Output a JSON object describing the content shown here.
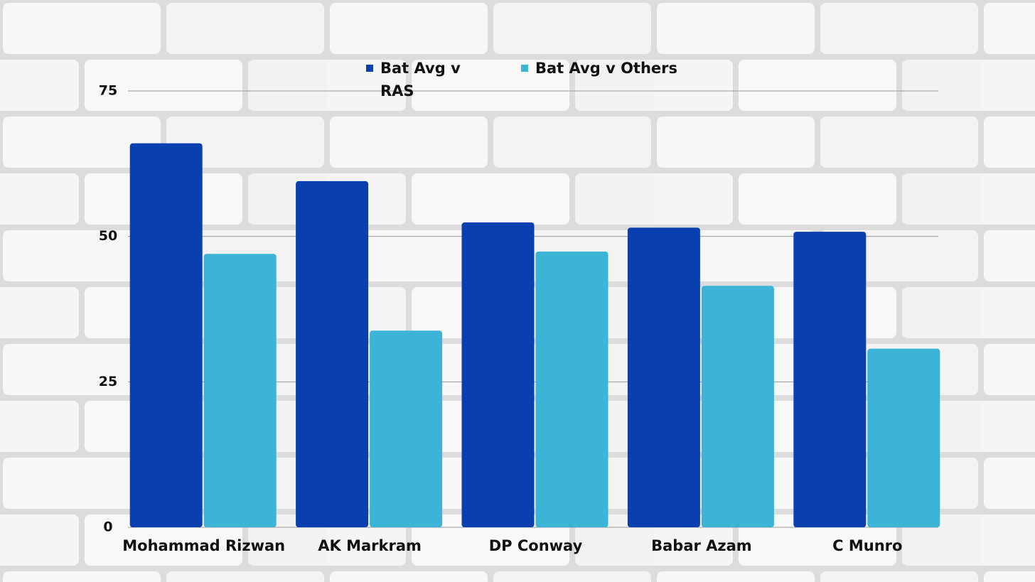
{
  "chart_data": {
    "type": "bar",
    "categories": [
      "Mohammad Rizwan",
      "AK Markram",
      "DP Conway",
      "Babar Azam",
      "C Munro"
    ],
    "series": [
      {
        "name": "Bat Avg v RAS",
        "color": "#0a3fb0",
        "values": [
          66,
          59.5,
          52.4,
          51.5,
          50.8
        ]
      },
      {
        "name": "Bat Avg v Others",
        "color": "#3bb4d8",
        "values": [
          47,
          33.8,
          47.4,
          41.5,
          30.7
        ]
      }
    ],
    "ylim": [
      0,
      75
    ],
    "yticks": [
      0,
      25,
      50,
      75
    ],
    "grid": true
  }
}
